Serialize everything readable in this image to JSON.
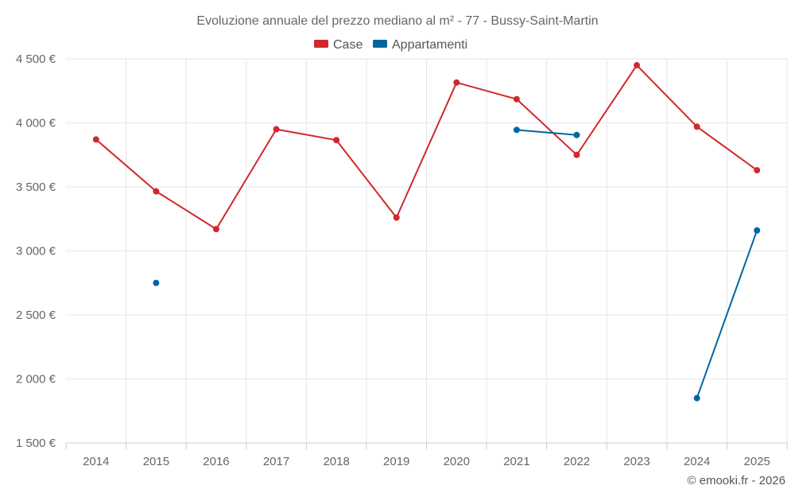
{
  "chart_data": {
    "type": "line",
    "title": "Evoluzione annuale del prezzo mediano al m² - 77 - Bussy-Saint-Martin",
    "categories": [
      "2014",
      "2015",
      "2016",
      "2017",
      "2018",
      "2019",
      "2020",
      "2021",
      "2022",
      "2023",
      "2024",
      "2025"
    ],
    "ylim": [
      1500,
      4500
    ],
    "yticks": [
      1500,
      2000,
      2500,
      3000,
      3500,
      4000,
      4500
    ],
    "ytick_labels": [
      "1 500 €",
      "2 000 €",
      "2 500 €",
      "3 000 €",
      "3 500 €",
      "4 000 €",
      "4 500 €"
    ],
    "series": [
      {
        "name": "Case",
        "color": "#d0282d",
        "values": [
          3870,
          3465,
          3170,
          3950,
          3865,
          3260,
          4315,
          4185,
          3750,
          4450,
          3970,
          3630
        ]
      },
      {
        "name": "Appartamenti",
        "color": "#0066a0",
        "values": [
          null,
          2750,
          null,
          null,
          null,
          null,
          null,
          3945,
          3905,
          null,
          1850,
          3160
        ]
      }
    ],
    "legend": "top-center",
    "grid": true,
    "credit": "© emooki.fr - 2026"
  }
}
